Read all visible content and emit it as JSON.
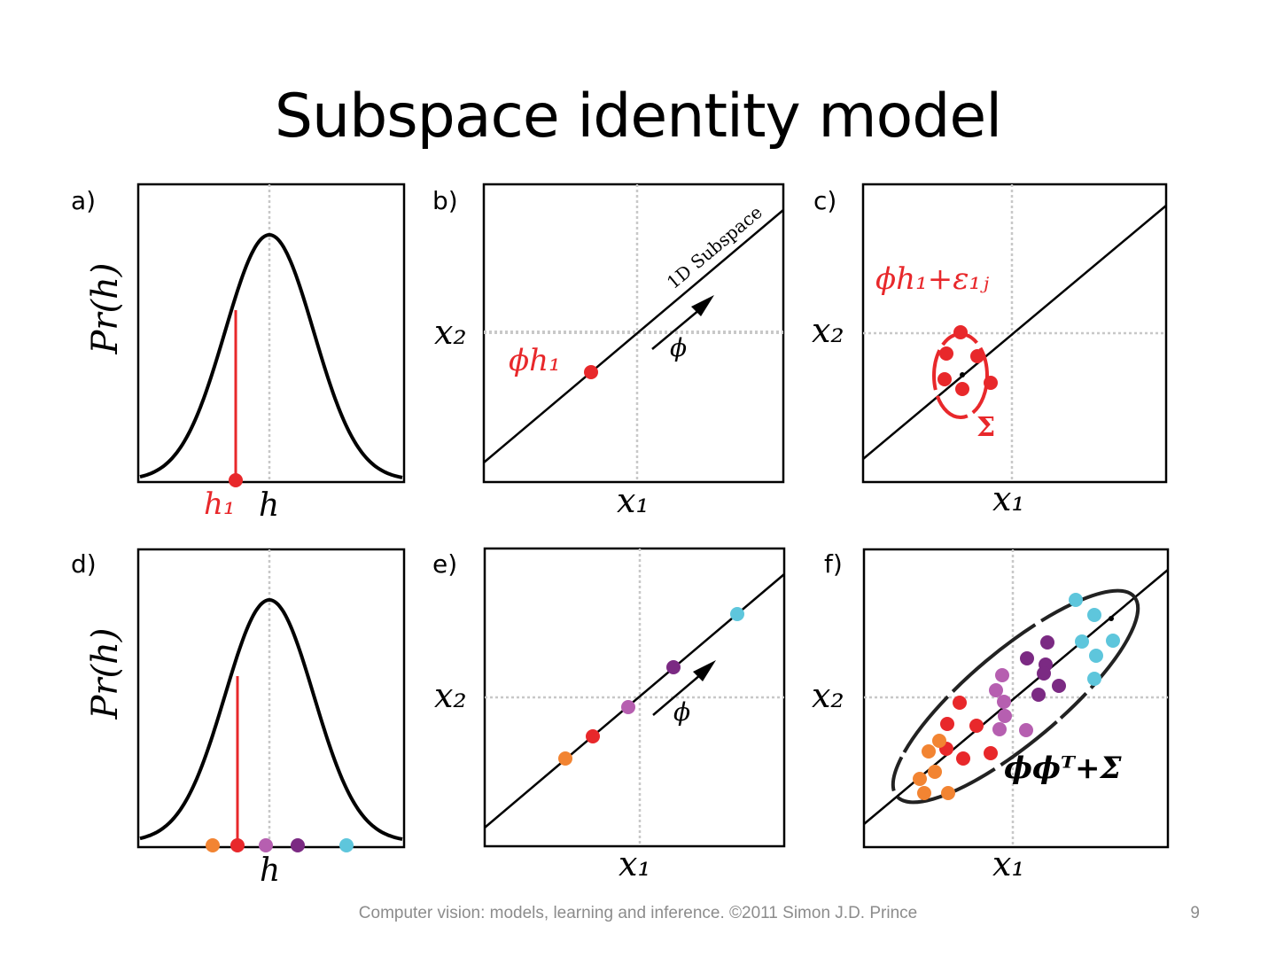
{
  "slide": {
    "title": "Subspace identity model",
    "footer": "Computer vision: models, learning and inference.  ©2011 Simon J.D. Prince",
    "page_number": "9"
  },
  "colors": {
    "red": "#e8282b",
    "orange": "#f28432",
    "pink": "#b65fb0",
    "purple": "#7b2a83",
    "cyan": "#5ec6dc",
    "grid": "#c8c8c8"
  },
  "panels": {
    "a": {
      "label": "a)",
      "ylabel": "Pr(h)",
      "xlabel": "h",
      "point_label": "h₁"
    },
    "b": {
      "label": "b)",
      "xlabel": "x₁",
      "ylabel": "x₂",
      "subspace_label": "1D Subspace",
      "arrow_label": "ϕ",
      "point_label": "ϕh₁"
    },
    "c": {
      "label": "c)",
      "xlabel": "x₁",
      "ylabel": "x₂",
      "point_label": "ϕh₁+ε₁ⱼ",
      "cov_label": "Σ"
    },
    "d": {
      "label": "d)",
      "ylabel": "Pr(h)",
      "xlabel": "h"
    },
    "e": {
      "label": "e)",
      "xlabel": "x₁",
      "ylabel": "x₂",
      "arrow_label": "ϕ"
    },
    "f": {
      "label": "f)",
      "xlabel": "x₁",
      "ylabel": "x₂",
      "cov_label": "ϕϕᵀ+Σ"
    }
  }
}
